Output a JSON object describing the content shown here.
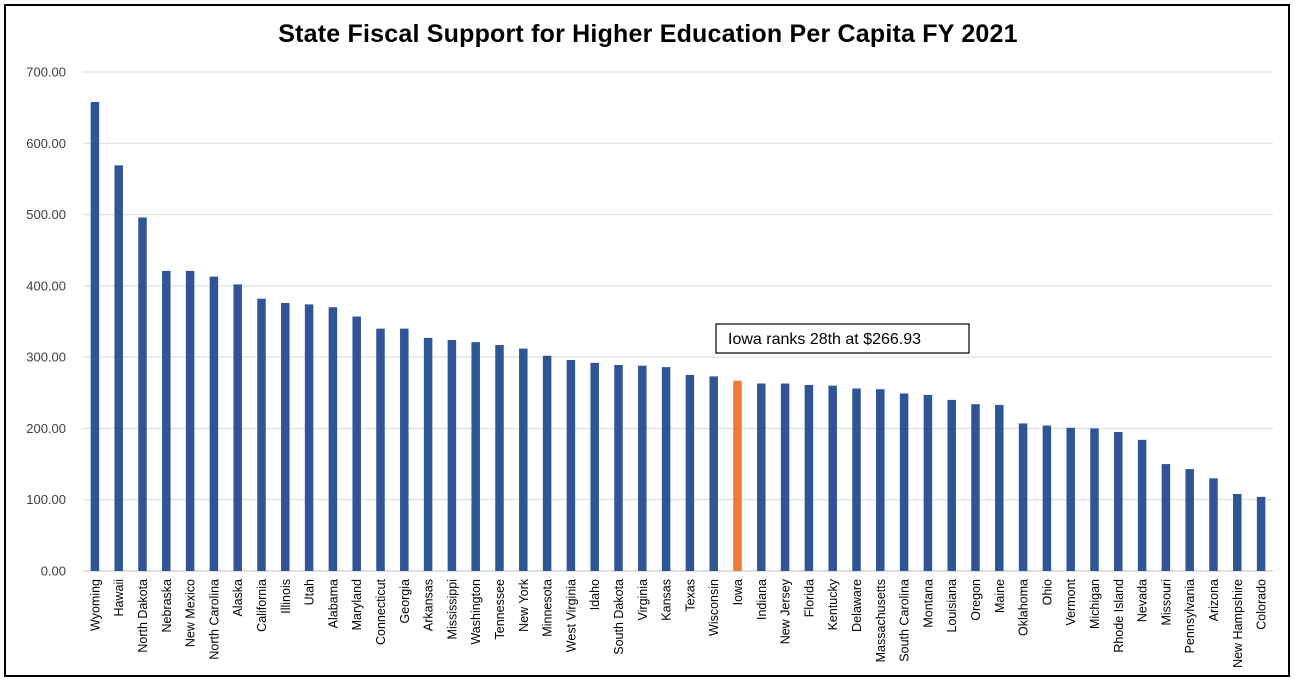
{
  "chart_data": {
    "type": "bar",
    "title": "State Fiscal Support for Higher Education Per Capita FY 2021",
    "xlabel": "",
    "ylabel": "",
    "ylim": [
      0,
      700
    ],
    "yticks": [
      "0.00",
      "100.00",
      "200.00",
      "300.00",
      "400.00",
      "500.00",
      "600.00",
      "700.00"
    ],
    "grid": true,
    "legend": "none",
    "categories": [
      "Wyoming",
      "Hawaii",
      "North Dakota",
      "Nebraska",
      "New Mexico",
      "North Carolina",
      "Alaska",
      "California",
      "Illinois",
      "Utah",
      "Alabama",
      "Maryland",
      "Connecticut",
      "Georgia",
      "Arkansas",
      "Mississippi",
      "Washington",
      "Tennessee",
      "New York",
      "Minnesota",
      "West Virginia",
      "Idaho",
      "South Dakota",
      "Virginia",
      "Kansas",
      "Texas",
      "Wisconsin",
      "Iowa",
      "Indiana",
      "New Jersey",
      "Florida",
      "Kentucky",
      "Delaware",
      "Massachusetts",
      "South Carolina",
      "Montana",
      "Louisiana",
      "Oregon",
      "Maine",
      "Oklahoma",
      "Ohio",
      "Vermont",
      "Michigan",
      "Rhode Island",
      "Nevada",
      "Missouri",
      "Pennsylvania",
      "Arizona",
      "New Hampshire",
      "Colorado"
    ],
    "values": [
      658,
      569,
      496,
      421,
      421,
      413,
      402,
      382,
      376,
      374,
      370,
      357,
      340,
      340,
      327,
      324,
      321,
      317,
      312,
      302,
      296,
      292,
      289,
      288,
      286,
      275,
      273,
      266.93,
      263,
      263,
      261,
      260,
      256,
      255,
      249,
      247,
      240,
      234,
      233,
      207,
      204,
      201,
      200,
      195,
      184,
      150,
      143,
      130,
      108,
      104
    ],
    "highlight_index": 27,
    "annotation": "Iowa ranks 28th at $266.93",
    "colors": {
      "bar": "#2F5597",
      "highlight": "#ED7D31",
      "grid": "#D9D9D9",
      "axis": "#BFBFBF"
    }
  }
}
